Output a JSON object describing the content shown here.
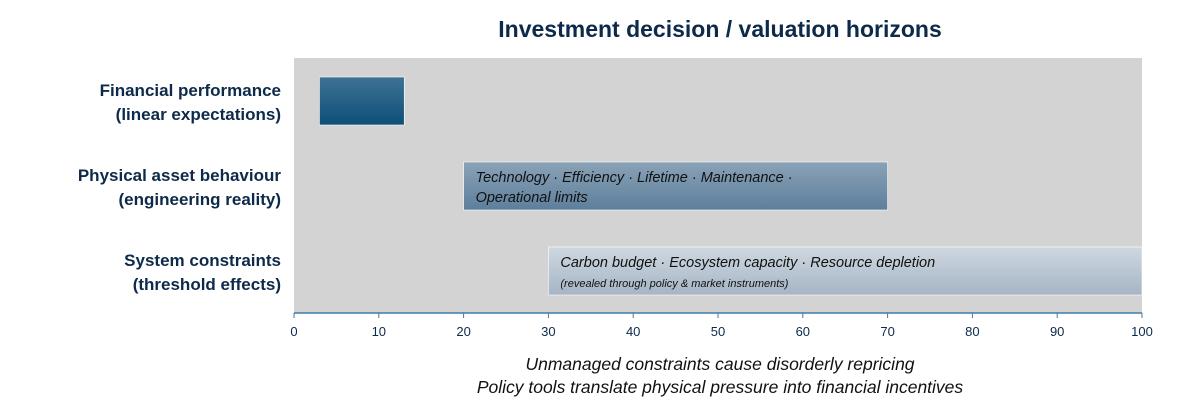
{
  "chart_data": {
    "type": "bar",
    "orientation": "horizontal",
    "title": "Investment decision / valuation horizons",
    "xlim": [
      0,
      100
    ],
    "x_ticks": [
      "0",
      "10",
      "20",
      "30",
      "40",
      "50",
      "60",
      "70",
      "80",
      "90",
      "100"
    ],
    "grid": false,
    "plot_background": "#d3d3d3",
    "categories": [
      {
        "line1": "Financial performance",
        "line2": "(linear expectations)",
        "start": 3,
        "end": 13,
        "bar_text_line1": "",
        "bar_text_line2": "",
        "color_top": "#3e7294",
        "color_bottom": "#0d4f78"
      },
      {
        "line1": "Physical asset behaviour",
        "line2": "(engineering reality)",
        "start": 20,
        "end": 70,
        "bar_text_line1": "Technology · Efficiency · Lifetime · Maintenance ·",
        "bar_text_line2": "Operational limits",
        "color_top": "#8aa2b7",
        "color_bottom": "#5d7f9b"
      },
      {
        "line1": "System constraints",
        "line2": "(threshold effects)",
        "start": 30,
        "end": 100,
        "bar_text_line1": "Carbon budget · Ecosystem capacity · Resource depletion",
        "bar_text_line2": "(revealed through policy & market instruments)",
        "color_top": "#cfd8e1",
        "color_bottom": "#a5b5c5"
      }
    ],
    "captions": [
      "Unmanaged constraints cause disorderly repricing",
      "Policy tools translate physical pressure into financial incentives"
    ],
    "axis_color": "#3f7ca6"
  }
}
